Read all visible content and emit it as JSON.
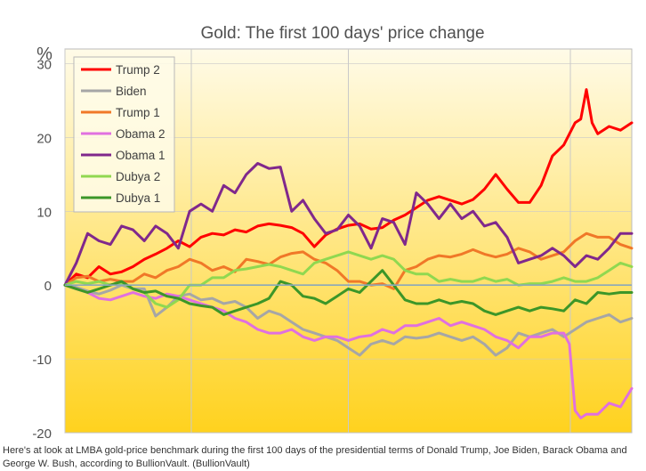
{
  "chart_data": {
    "type": "line",
    "title": "Gold: The first 100 days' price change",
    "ylabel": "%",
    "xlabel": "",
    "ylim": [
      -20,
      32
    ],
    "xlim": [
      0,
      100
    ],
    "y_ticks": [
      "30",
      "20",
      "10",
      "0",
      "-10",
      "-20"
    ],
    "legend_position": "top-left",
    "series": [
      {
        "name": "Trump 2",
        "color": "#ff0000",
        "x": [
          0,
          2,
          4,
          6,
          8,
          10,
          12,
          14,
          16,
          18,
          20,
          22,
          24,
          26,
          28,
          30,
          32,
          34,
          36,
          38,
          40,
          42,
          44,
          46,
          48,
          50,
          52,
          54,
          56,
          58,
          60,
          62,
          64,
          66,
          68,
          70,
          72,
          74,
          76,
          78,
          80,
          82,
          84,
          86,
          88,
          90,
          91,
          92,
          93,
          94,
          96,
          98,
          100
        ],
        "values": [
          0,
          1.5,
          1,
          2.5,
          1.5,
          1.8,
          2.5,
          3.5,
          4.2,
          5,
          6,
          5.2,
          6.5,
          7,
          6.8,
          7.5,
          7.2,
          8,
          8.3,
          8.1,
          7.8,
          7,
          5.2,
          6.8,
          7.6,
          8.1,
          8.3,
          7.6,
          7.8,
          8.8,
          9.5,
          10.5,
          11.5,
          12,
          11.5,
          11,
          11.6,
          13,
          15,
          13,
          11.2,
          11.2,
          13.5,
          17.5,
          19,
          22,
          22.5,
          26.5,
          22,
          20.5,
          21.5,
          21,
          22
        ]
      },
      {
        "name": "Biden",
        "color": "#a6a6a6",
        "x": [
          0,
          2,
          4,
          6,
          8,
          10,
          12,
          14,
          16,
          18,
          20,
          22,
          24,
          26,
          28,
          30,
          32,
          34,
          36,
          38,
          40,
          42,
          44,
          46,
          48,
          50,
          52,
          54,
          56,
          58,
          60,
          62,
          64,
          66,
          68,
          70,
          72,
          74,
          76,
          78,
          80,
          82,
          84,
          86,
          88,
          90,
          92,
          94,
          96,
          98,
          100
        ],
        "values": [
          0,
          -0.3,
          -0.8,
          -1.2,
          -0.7,
          0,
          -0.5,
          -0.5,
          -4.2,
          -3,
          -1.5,
          -1.2,
          -2,
          -1.8,
          -2.5,
          -2.2,
          -3,
          -4.5,
          -3.5,
          -4,
          -5,
          -6,
          -6.5,
          -7,
          -7.5,
          -8.5,
          -9.5,
          -8,
          -7.5,
          -8,
          -7,
          -7.2,
          -7,
          -6.5,
          -7,
          -7.5,
          -7,
          -8,
          -9.5,
          -8.5,
          -6.5,
          -7,
          -6.5,
          -6,
          -7,
          -6,
          -5,
          -4.5,
          -4,
          -5,
          -4.5
        ]
      },
      {
        "name": "Trump 1",
        "color": "#f07828",
        "x": [
          0,
          2,
          4,
          6,
          8,
          10,
          12,
          14,
          16,
          18,
          20,
          22,
          24,
          26,
          28,
          30,
          32,
          34,
          36,
          38,
          40,
          42,
          44,
          46,
          48,
          50,
          52,
          54,
          56,
          58,
          60,
          62,
          64,
          66,
          68,
          70,
          72,
          74,
          76,
          78,
          80,
          82,
          84,
          86,
          88,
          90,
          92,
          94,
          96,
          98,
          100
        ],
        "values": [
          0,
          1,
          1.2,
          0.5,
          0.8,
          0.5,
          0.5,
          1.5,
          1,
          2,
          2.5,
          3.5,
          3,
          2,
          2.5,
          1.8,
          3.5,
          3.2,
          2.8,
          3.8,
          4.3,
          4.5,
          3.5,
          3,
          2,
          0.5,
          0.5,
          0,
          0.2,
          -0.5,
          2,
          2.5,
          3.5,
          4,
          3.8,
          4.2,
          4.8,
          4.2,
          3.8,
          4.2,
          5,
          4.5,
          3.5,
          4,
          4.5,
          6,
          7,
          6.5,
          6.5,
          5.5,
          5
        ]
      },
      {
        "name": "Obama 2",
        "color": "#e070e0",
        "x": [
          0,
          2,
          4,
          6,
          8,
          10,
          12,
          14,
          16,
          18,
          20,
          22,
          24,
          26,
          28,
          30,
          32,
          34,
          36,
          38,
          40,
          42,
          44,
          46,
          48,
          50,
          52,
          54,
          56,
          58,
          60,
          62,
          64,
          66,
          68,
          70,
          72,
          74,
          76,
          78,
          80,
          82,
          84,
          86,
          88,
          89,
          90,
          91,
          92,
          94,
          96,
          98,
          100
        ],
        "values": [
          0,
          -0.5,
          -1,
          -1.8,
          -2,
          -1.5,
          -1,
          -1.5,
          -1.8,
          -1.2,
          -1.5,
          -2,
          -2.5,
          -3,
          -3.5,
          -4.5,
          -5,
          -6,
          -6.5,
          -6.5,
          -6,
          -7,
          -7.5,
          -7,
          -7,
          -7.5,
          -7,
          -6.8,
          -6,
          -6.5,
          -5.5,
          -5.5,
          -5,
          -4.5,
          -5.5,
          -5,
          -5.5,
          -6,
          -7,
          -7.5,
          -8.5,
          -7,
          -7,
          -6.5,
          -6.5,
          -8,
          -17,
          -18,
          -17.5,
          -17.5,
          -16,
          -16.5,
          -14
        ]
      },
      {
        "name": "Obama 1",
        "color": "#80288c",
        "x": [
          0,
          2,
          4,
          6,
          8,
          10,
          12,
          14,
          16,
          18,
          20,
          22,
          24,
          26,
          28,
          30,
          32,
          34,
          36,
          38,
          40,
          42,
          44,
          46,
          48,
          50,
          52,
          54,
          56,
          58,
          60,
          62,
          64,
          66,
          68,
          70,
          72,
          74,
          76,
          78,
          80,
          82,
          84,
          86,
          88,
          90,
          92,
          94,
          96,
          98,
          100
        ],
        "values": [
          0,
          3,
          7,
          6,
          5.5,
          8,
          7.5,
          6,
          8,
          7,
          5,
          10,
          11,
          10,
          13.5,
          12.5,
          15,
          16.5,
          15.8,
          16,
          10,
          11.5,
          9,
          7,
          7.5,
          9.5,
          8,
          5,
          9,
          8.5,
          5.5,
          12.5,
          11,
          9,
          11,
          9,
          10,
          8,
          8.5,
          6.5,
          3,
          3.5,
          4,
          5,
          4,
          2.5,
          4,
          3.5,
          5,
          7,
          7
        ]
      },
      {
        "name": "Dubya 2",
        "color": "#90d850",
        "x": [
          0,
          2,
          4,
          6,
          8,
          10,
          12,
          14,
          16,
          18,
          20,
          22,
          24,
          26,
          28,
          30,
          32,
          34,
          36,
          38,
          40,
          42,
          44,
          46,
          48,
          50,
          52,
          54,
          56,
          58,
          60,
          62,
          64,
          66,
          68,
          70,
          72,
          74,
          76,
          78,
          80,
          82,
          84,
          86,
          88,
          90,
          92,
          94,
          96,
          98,
          100
        ],
        "values": [
          0,
          0.5,
          0.2,
          0.5,
          0,
          0.3,
          -0.5,
          -1,
          -2.5,
          -3,
          -2,
          0,
          0,
          1,
          1,
          2,
          2.2,
          2.5,
          2.8,
          2.5,
          2,
          1.5,
          3,
          3.5,
          4,
          4.5,
          4,
          3.5,
          4,
          3.5,
          2,
          1.5,
          1.5,
          0.5,
          0.8,
          0.5,
          0.5,
          1,
          0.5,
          0.8,
          0,
          0.2,
          0.2,
          0.5,
          1,
          0.5,
          0.5,
          1,
          2,
          3,
          2.5
        ]
      },
      {
        "name": "Dubya 1",
        "color": "#3c9628",
        "x": [
          0,
          2,
          4,
          6,
          8,
          10,
          12,
          14,
          16,
          18,
          20,
          22,
          24,
          26,
          28,
          30,
          32,
          34,
          36,
          38,
          40,
          42,
          44,
          46,
          48,
          50,
          52,
          54,
          56,
          58,
          60,
          62,
          64,
          66,
          68,
          70,
          72,
          74,
          76,
          78,
          80,
          82,
          84,
          86,
          88,
          90,
          92,
          94,
          96,
          98,
          100
        ],
        "values": [
          0,
          -0.5,
          -1,
          -0.5,
          0,
          0.5,
          -0.5,
          -1,
          -0.8,
          -1.5,
          -1.8,
          -2.5,
          -2.8,
          -3,
          -4,
          -3.5,
          -3,
          -2.5,
          -1.8,
          0.5,
          0,
          -1.5,
          -1.8,
          -2.5,
          -1.5,
          -0.5,
          -1,
          0.5,
          2,
          0,
          -2,
          -2.5,
          -2.5,
          -2,
          -2.5,
          -2.2,
          -2.5,
          -3.5,
          -4,
          -3.5,
          -3,
          -3.5,
          -3,
          -3.2,
          -3.5,
          -2,
          -2.5,
          -1,
          -1.2,
          -1,
          -1
        ]
      }
    ]
  },
  "caption": "Here's at look at LMBA gold-price benchmark during the first 100 days of the presidential terms of Donald Trump, Joe Biden, Barack Obama and George W. Bush, according to BullionVault. (BullionVault)",
  "colors": {
    "plot_gradient_top": "#fffbe8",
    "plot_gradient_bottom": "#ffd21e",
    "grid": "#c9c9c9",
    "zero_line": "#8aa8ba",
    "text": "#505050"
  }
}
